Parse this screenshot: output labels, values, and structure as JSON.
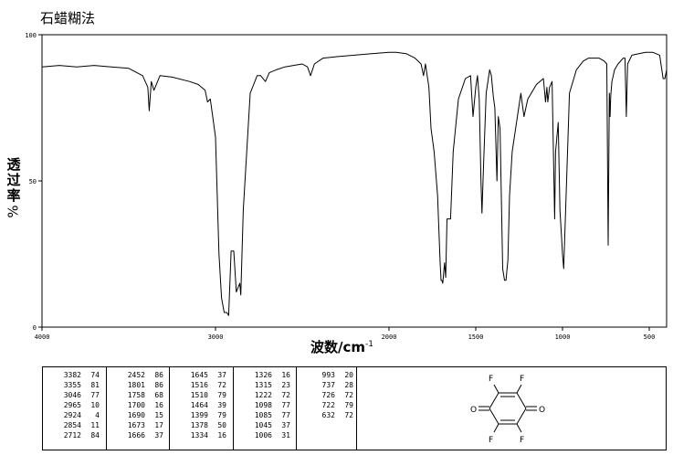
{
  "header": {
    "title": "石蜡糊法"
  },
  "chart_data": {
    "type": "line",
    "xlabel": "波数/cm",
    "xlabel_exp": "-1",
    "ylabel": "透过率",
    "ylabel_unit": "%",
    "xlim": [
      4000,
      400
    ],
    "ylim": [
      0,
      100
    ],
    "xticks": [
      4000,
      3000,
      2000,
      1500,
      1000,
      500
    ],
    "xtick_labels": [
      "4000",
      "3000",
      "2000",
      "1500",
      "1000",
      "500"
    ],
    "yticks": [
      0,
      50,
      100
    ],
    "ytick_labels": [
      "0",
      "50",
      "100"
    ],
    "grid": false,
    "series": [
      {
        "x": [
          4000,
          3900,
          3800,
          3700,
          3600,
          3500,
          3420,
          3390,
          3382,
          3370,
          3355,
          3320,
          3250,
          3150,
          3100,
          3060,
          3046,
          3030,
          3000,
          2980,
          2965,
          2950,
          2935,
          2924,
          2910,
          2895,
          2880,
          2860,
          2854,
          2840,
          2800,
          2760,
          2740,
          2712,
          2690,
          2650,
          2600,
          2500,
          2470,
          2452,
          2430,
          2380,
          2300,
          2200,
          2100,
          2000,
          1960,
          1900,
          1850,
          1815,
          1801,
          1790,
          1770,
          1758,
          1740,
          1720,
          1705,
          1700,
          1695,
          1690,
          1680,
          1673,
          1666,
          1650,
          1645,
          1630,
          1600,
          1560,
          1530,
          1516,
          1500,
          1490,
          1480,
          1470,
          1464,
          1455,
          1440,
          1420,
          1410,
          1399,
          1390,
          1378,
          1370,
          1360,
          1345,
          1334,
          1326,
          1315,
          1305,
          1290,
          1260,
          1240,
          1222,
          1200,
          1150,
          1110,
          1098,
          1090,
          1085,
          1075,
          1060,
          1045,
          1040,
          1025,
          1015,
          1006,
          1000,
          993,
          985,
          960,
          920,
          880,
          850,
          820,
          790,
          760,
          745,
          737,
          730,
          726,
          722,
          715,
          700,
          680,
          650,
          640,
          632,
          625,
          600,
          560,
          520,
          480,
          440,
          420,
          410,
          400
        ],
        "y": [
          89,
          89.5,
          89,
          89.5,
          89,
          88.5,
          86,
          82,
          74,
          84,
          81,
          86,
          85.5,
          84,
          83,
          81,
          77,
          78,
          65,
          25,
          10,
          5,
          5,
          4,
          26,
          26,
          12,
          15,
          11,
          40,
          80,
          86,
          86,
          84,
          87,
          88,
          89,
          90,
          89,
          86,
          90,
          92,
          92.5,
          93,
          93.5,
          94,
          94,
          93.5,
          92,
          90,
          86,
          90,
          82,
          68,
          60,
          45,
          22,
          16,
          16,
          15,
          22,
          17,
          37,
          37,
          37,
          60,
          78,
          85,
          86,
          72,
          82,
          86,
          78,
          50,
          39,
          55,
          80,
          88,
          86,
          79,
          75,
          50,
          72,
          68,
          20,
          16,
          16,
          23,
          45,
          60,
          72,
          80,
          72,
          78,
          83,
          85,
          77,
          82,
          77,
          82,
          84,
          37,
          60,
          70,
          40,
          31,
          25,
          20,
          35,
          80,
          88,
          91,
          92,
          92,
          92,
          91,
          90,
          28,
          80,
          72,
          79,
          84,
          88,
          90,
          92,
          92,
          72,
          90,
          93,
          93.5,
          94,
          94,
          93,
          85,
          85,
          88
        ]
      }
    ]
  },
  "peak_table": {
    "columns": [
      [
        [
          "3382",
          "74"
        ],
        [
          "3355",
          "81"
        ],
        [
          "3046",
          "77"
        ],
        [
          "2965",
          "10"
        ],
        [
          "2924",
          "4"
        ],
        [
          "2854",
          "11"
        ],
        [
          "2712",
          "84"
        ]
      ],
      [
        [
          "2452",
          "86"
        ],
        [
          "1801",
          "86"
        ],
        [
          "1758",
          "68"
        ],
        [
          "1700",
          "16"
        ],
        [
          "1690",
          "15"
        ],
        [
          "1673",
          "17"
        ],
        [
          "1666",
          "37"
        ]
      ],
      [
        [
          "1645",
          "37"
        ],
        [
          "1516",
          "72"
        ],
        [
          "1510",
          "79"
        ],
        [
          "1464",
          "39"
        ],
        [
          "1399",
          "79"
        ],
        [
          "1378",
          "50"
        ],
        [
          "1334",
          "16"
        ]
      ],
      [
        [
          "1326",
          "16"
        ],
        [
          "1315",
          "23"
        ],
        [
          "1222",
          "72"
        ],
        [
          "1098",
          "77"
        ],
        [
          "1085",
          "77"
        ],
        [
          "1045",
          "37"
        ],
        [
          "1006",
          "31"
        ]
      ],
      [
        [
          "993",
          "20"
        ],
        [
          "737",
          "28"
        ],
        [
          "726",
          "72"
        ],
        [
          "722",
          "79"
        ],
        [
          "632",
          "72"
        ]
      ]
    ]
  },
  "structure": {
    "atoms": {
      "f_tl": "F",
      "f_tr": "F",
      "f_bl": "F",
      "f_br": "F",
      "o_left": "O",
      "o_right": "O"
    }
  }
}
